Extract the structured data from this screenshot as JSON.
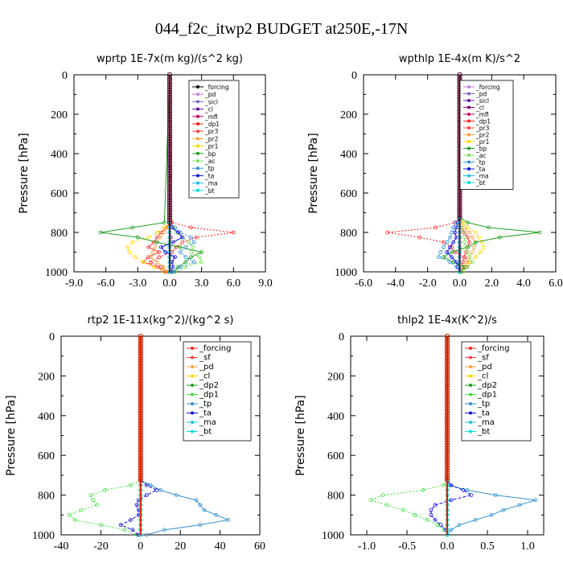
{
  "figure_title": "044_f2c_itwp2  BUDGET at250E,-17N",
  "chart_data": [
    {
      "type": "line",
      "title": "wprtp   1E-7x(m kg)/(s^2 kg)",
      "ylabel": "Pressure [hPa]",
      "xlim": [
        -9,
        9
      ],
      "ylim": [
        1000,
        0
      ],
      "xticks": [
        "-9.0",
        "-6.0",
        "-3.0",
        "0.0",
        "3.0",
        "6.0",
        "9.0"
      ],
      "yticks": [
        "0",
        "200",
        "400",
        "600",
        "800",
        "1000"
      ],
      "pressure": [
        750,
        775,
        800,
        825,
        850,
        875,
        900,
        925,
        950,
        975,
        1000
      ],
      "series": [
        {
          "name": "_forcing",
          "color": "#000000",
          "values": [
            0,
            0,
            0,
            0,
            0,
            0,
            0,
            0,
            0,
            0,
            0
          ]
        },
        {
          "name": "_pd",
          "color": "#c080e0",
          "values": [
            0,
            0,
            0,
            0,
            0,
            0,
            0,
            0,
            0,
            0,
            0
          ]
        },
        {
          "name": "_sicl",
          "color": "#8060c0",
          "values": [
            0,
            0,
            0,
            0,
            0,
            0,
            0,
            0,
            0,
            0,
            0
          ]
        },
        {
          "name": "_cl",
          "color": "#6a0dad",
          "values": [
            0,
            0,
            0,
            0,
            0,
            0,
            0,
            0,
            0,
            0,
            0
          ]
        },
        {
          "name": "_mfl",
          "color": "#c00060",
          "values": [
            0,
            0,
            0,
            0.1,
            0,
            0,
            0,
            0,
            0,
            0,
            0
          ]
        },
        {
          "name": "_dp1",
          "color": "#ff2020",
          "values": [
            0.2,
            2.0,
            6.0,
            2.5,
            1.2,
            0.6,
            0.2,
            -1.0,
            -1.8,
            -0.8,
            -0.3
          ]
        },
        {
          "name": "_pr3",
          "color": "#ff4040",
          "values": [
            0,
            -0.3,
            -0.8,
            -1.2,
            -1.5,
            -2.0,
            -1.0,
            -2.0,
            -2.5,
            -1.2,
            -0.4
          ]
        },
        {
          "name": "_pr2",
          "color": "#ffa040",
          "values": [
            0,
            -0.2,
            -0.5,
            -0.9,
            -1.2,
            -1.4,
            -1.6,
            -1.8,
            -1.2,
            -0.6,
            -0.2
          ]
        },
        {
          "name": "_pr1",
          "color": "#ffd700",
          "values": [
            0,
            -0.5,
            -1.2,
            -2.0,
            -3.5,
            -4.0,
            -3.8,
            -3.2,
            -2.5,
            -1.5,
            -0.5
          ]
        },
        {
          "name": "_bp",
          "color": "#20a020",
          "values": [
            -0.5,
            -3.5,
            -6.5,
            -3.0,
            -1.2,
            1.0,
            3.0,
            2.0,
            1.5,
            0.8,
            0.3
          ]
        },
        {
          "name": "_ac",
          "color": "#80e060",
          "values": [
            0,
            0.3,
            0.6,
            1.2,
            1.8,
            2.2,
            2.0,
            2.8,
            3.0,
            1.5,
            0.5
          ]
        },
        {
          "name": "_tp",
          "color": "#3090d0",
          "values": [
            0,
            0.5,
            1.0,
            2.0,
            2.3,
            1.5,
            1.0,
            1.5,
            2.3,
            1.0,
            0.4
          ]
        },
        {
          "name": "_ta",
          "color": "#1010e0",
          "values": [
            0,
            0.2,
            0.8,
            1.2,
            0.3,
            -0.8,
            -0.4,
            0.5,
            0.2,
            0.3,
            0.1
          ]
        },
        {
          "name": "_ma",
          "color": "#20c0e0",
          "values": [
            0,
            0,
            0,
            0,
            0,
            0,
            0,
            0,
            0,
            0,
            0
          ]
        },
        {
          "name": "_bt",
          "color": "#00e0e0",
          "values": [
            0,
            0,
            0,
            0,
            0,
            0,
            0,
            0,
            0,
            0,
            0
          ]
        }
      ]
    },
    {
      "type": "line",
      "title": "wpthlp   1E-4x(m K)/s^2",
      "ylabel": "Pressure [hPa]",
      "xlim": [
        -6,
        6
      ],
      "ylim": [
        1000,
        0
      ],
      "xticks": [
        "-6.0",
        "-4.0",
        "-2.0",
        "0.0",
        "2.0",
        "4.0",
        "6.0"
      ],
      "yticks": [
        "0",
        "200",
        "400",
        "600",
        "800",
        "1000"
      ],
      "pressure": [
        725,
        750,
        775,
        800,
        825,
        850,
        875,
        900,
        925,
        950,
        975,
        1000
      ],
      "series": [
        {
          "name": "_forcing",
          "color": "#c080e0",
          "values": [
            0,
            0,
            0,
            0,
            0,
            0,
            0,
            0,
            0,
            0,
            0,
            0
          ]
        },
        {
          "name": "_pd",
          "color": "#8060c0",
          "values": [
            0,
            0,
            0,
            0,
            0,
            0,
            0,
            0,
            0,
            0,
            0,
            0
          ]
        },
        {
          "name": "_sicl",
          "color": "#6a0dad",
          "values": [
            0,
            0,
            0,
            0,
            0,
            0,
            0,
            0,
            0,
            0,
            0,
            0
          ]
        },
        {
          "name": "_cl",
          "color": "#800080",
          "values": [
            0,
            0,
            0,
            0,
            0,
            0,
            0,
            0,
            0,
            0,
            0,
            0
          ]
        },
        {
          "name": "_mfl",
          "color": "#c00060",
          "values": [
            0,
            0,
            0,
            0,
            0,
            0,
            0,
            0,
            0,
            0,
            0,
            0
          ]
        },
        {
          "name": "_dp1",
          "color": "#ff2020",
          "values": [
            0,
            -0.3,
            -1.5,
            -4.5,
            -2.5,
            -1.0,
            -0.5,
            -0.3,
            0.3,
            0.6,
            0.4,
            0.1
          ]
        },
        {
          "name": "_pr3",
          "color": "#ff4040",
          "values": [
            0,
            0,
            0.1,
            0.3,
            0.5,
            0.6,
            0.5,
            0.4,
            0.3,
            0.2,
            0.1,
            0
          ]
        },
        {
          "name": "_pr2",
          "color": "#ffa040",
          "values": [
            0,
            0.1,
            0.3,
            0.6,
            0.8,
            1.0,
            0.9,
            0.8,
            0.6,
            0.4,
            0.2,
            0.1
          ]
        },
        {
          "name": "_pr1",
          "color": "#ffd700",
          "values": [
            0,
            0.2,
            0.5,
            1.0,
            1.2,
            1.4,
            1.5,
            1.3,
            1.0,
            0.6,
            0.3,
            0.1
          ]
        },
        {
          "name": "_bp",
          "color": "#20a020",
          "values": [
            0,
            0.5,
            1.8,
            5.0,
            2.5,
            1.0,
            0.5,
            -0.5,
            -1.0,
            -0.4,
            0.3,
            0.1
          ]
        },
        {
          "name": "_ac",
          "color": "#80e060",
          "values": [
            0,
            0,
            0.1,
            0.2,
            0.3,
            0.3,
            0.4,
            0.5,
            0.6,
            0.8,
            0.5,
            0.2
          ]
        },
        {
          "name": "_tp",
          "color": "#3090d0",
          "values": [
            0,
            -0.2,
            -0.4,
            -0.5,
            -0.6,
            -0.8,
            -1.0,
            -1.2,
            -1.3,
            -0.6,
            -0.2,
            0
          ]
        },
        {
          "name": "_ta",
          "color": "#1010e0",
          "values": [
            0,
            -0.1,
            -0.2,
            -0.3,
            -0.2,
            -0.4,
            -0.6,
            -0.8,
            -0.5,
            -0.2,
            -0.1,
            0
          ]
        },
        {
          "name": "_ma",
          "color": "#20c0e0",
          "values": [
            0,
            0,
            0,
            0,
            0,
            0,
            0,
            0,
            0,
            0,
            0,
            0
          ]
        },
        {
          "name": "_bt",
          "color": "#00e0e0",
          "values": [
            0,
            0,
            0,
            0,
            0,
            0,
            0,
            0,
            0,
            0,
            0,
            0
          ]
        }
      ]
    },
    {
      "type": "line",
      "title": "rtp2   1E-11x(kg^2)/(kg^2 s)",
      "ylabel": "Pressure [hPa]",
      "xlim": [
        -40,
        60
      ],
      "ylim": [
        1000,
        0
      ],
      "xticks": [
        "-40",
        "-20",
        "0",
        "20",
        "40",
        "60"
      ],
      "yticks": [
        "0",
        "200",
        "400",
        "600",
        "800",
        "1000"
      ],
      "pressure": [
        725,
        750,
        775,
        800,
        825,
        850,
        875,
        900,
        925,
        950,
        975,
        1000
      ],
      "series": [
        {
          "name": "_forcing",
          "color": "#ff2020",
          "values": [
            0,
            0,
            0,
            0,
            0,
            0,
            0,
            0,
            0,
            0,
            0,
            0
          ]
        },
        {
          "name": "_sf",
          "color": "#ff4040",
          "values": [
            0,
            0,
            0,
            0,
            0,
            0,
            0,
            0,
            0,
            0,
            0,
            0
          ]
        },
        {
          "name": "_pd",
          "color": "#ffa040",
          "values": [
            0,
            0,
            0,
            0,
            0,
            0,
            0,
            0,
            0,
            0,
            0,
            0
          ]
        },
        {
          "name": "_cl",
          "color": "#ffd700",
          "values": [
            0,
            0,
            0,
            0,
            0,
            0,
            0,
            0,
            0,
            0,
            0,
            0
          ]
        },
        {
          "name": "_dp2",
          "color": "#20a020",
          "values": [
            0,
            0,
            0,
            0,
            0,
            0,
            0,
            0,
            0,
            0,
            0,
            0
          ]
        },
        {
          "name": "_dp1",
          "color": "#40e040",
          "values": [
            0,
            -5,
            -18,
            -25,
            -24,
            -22,
            -30,
            -36,
            -33,
            -20,
            -8,
            -2
          ]
        },
        {
          "name": "_tp",
          "color": "#3090d0",
          "values": [
            0,
            5,
            10,
            18,
            28,
            30,
            32,
            38,
            44,
            30,
            12,
            3
          ]
        },
        {
          "name": "_ta",
          "color": "#1010e0",
          "values": [
            0,
            3,
            8,
            3,
            -1,
            -2,
            -1,
            -1,
            -5,
            -10,
            -4,
            -1
          ]
        },
        {
          "name": "_ma",
          "color": "#20c0e0",
          "values": [
            0,
            0,
            0,
            0,
            0,
            0,
            0,
            0,
            0,
            0,
            0,
            0
          ]
        },
        {
          "name": "_bt",
          "color": "#00e0e0",
          "values": [
            0,
            0,
            0,
            0,
            0,
            0,
            0,
            0,
            0,
            0,
            0,
            0
          ]
        }
      ]
    },
    {
      "type": "line",
      "title": "thlp2   1E-4x(K^2)/s",
      "ylabel": "Pressure [hPa]",
      "xlim": [
        -1.2,
        1.2
      ],
      "ylim": [
        1000,
        0
      ],
      "xticks": [
        "-1.0",
        "-0.5",
        "0.0",
        "0.5",
        "1.0"
      ],
      "yticks": [
        "0",
        "200",
        "400",
        "600",
        "800",
        "1000"
      ],
      "pressure": [
        725,
        750,
        775,
        800,
        825,
        850,
        875,
        900,
        925,
        950,
        975,
        1000
      ],
      "series": [
        {
          "name": "_forcing",
          "color": "#ff2020",
          "values": [
            0,
            0,
            0,
            0,
            0,
            0,
            0,
            0,
            0,
            0,
            0,
            0
          ]
        },
        {
          "name": "_sf",
          "color": "#ff4040",
          "values": [
            0,
            0,
            0,
            0,
            0,
            0,
            0,
            0,
            0,
            0,
            0,
            0
          ]
        },
        {
          "name": "_pd",
          "color": "#ffa040",
          "values": [
            0,
            0,
            0,
            0,
            0,
            0,
            0,
            0,
            0,
            0,
            0,
            0
          ]
        },
        {
          "name": "_cl",
          "color": "#ffd700",
          "values": [
            0,
            0,
            0,
            0,
            0,
            0,
            0,
            0,
            0,
            0,
            0,
            0
          ]
        },
        {
          "name": "_dp2",
          "color": "#20a020",
          "values": [
            0,
            0,
            0,
            0,
            0,
            0,
            0,
            0,
            0,
            0,
            0,
            0
          ]
        },
        {
          "name": "_dp1",
          "color": "#40e040",
          "values": [
            0,
            -0.05,
            -0.3,
            -0.8,
            -0.95,
            -0.75,
            -0.55,
            -0.4,
            -0.25,
            -0.12,
            -0.04,
            0
          ]
        },
        {
          "name": "_tp",
          "color": "#3090d0",
          "values": [
            0,
            0.02,
            0.25,
            0.6,
            1.1,
            0.9,
            0.7,
            0.55,
            0.35,
            0.15,
            0.05,
            0
          ]
        },
        {
          "name": "_ta",
          "color": "#1010e0",
          "values": [
            0,
            0.05,
            0.2,
            0.3,
            0.05,
            -0.15,
            -0.2,
            -0.2,
            -0.15,
            -0.08,
            -0.02,
            0
          ]
        },
        {
          "name": "_ma",
          "color": "#20c0e0",
          "values": [
            0,
            0,
            0,
            0,
            0,
            0,
            0,
            0,
            0,
            0,
            0,
            0
          ]
        },
        {
          "name": "_bt",
          "color": "#00e0e0",
          "values": [
            0,
            0,
            0,
            0,
            0,
            0,
            0,
            0,
            0,
            0,
            0,
            0
          ]
        }
      ]
    }
  ]
}
